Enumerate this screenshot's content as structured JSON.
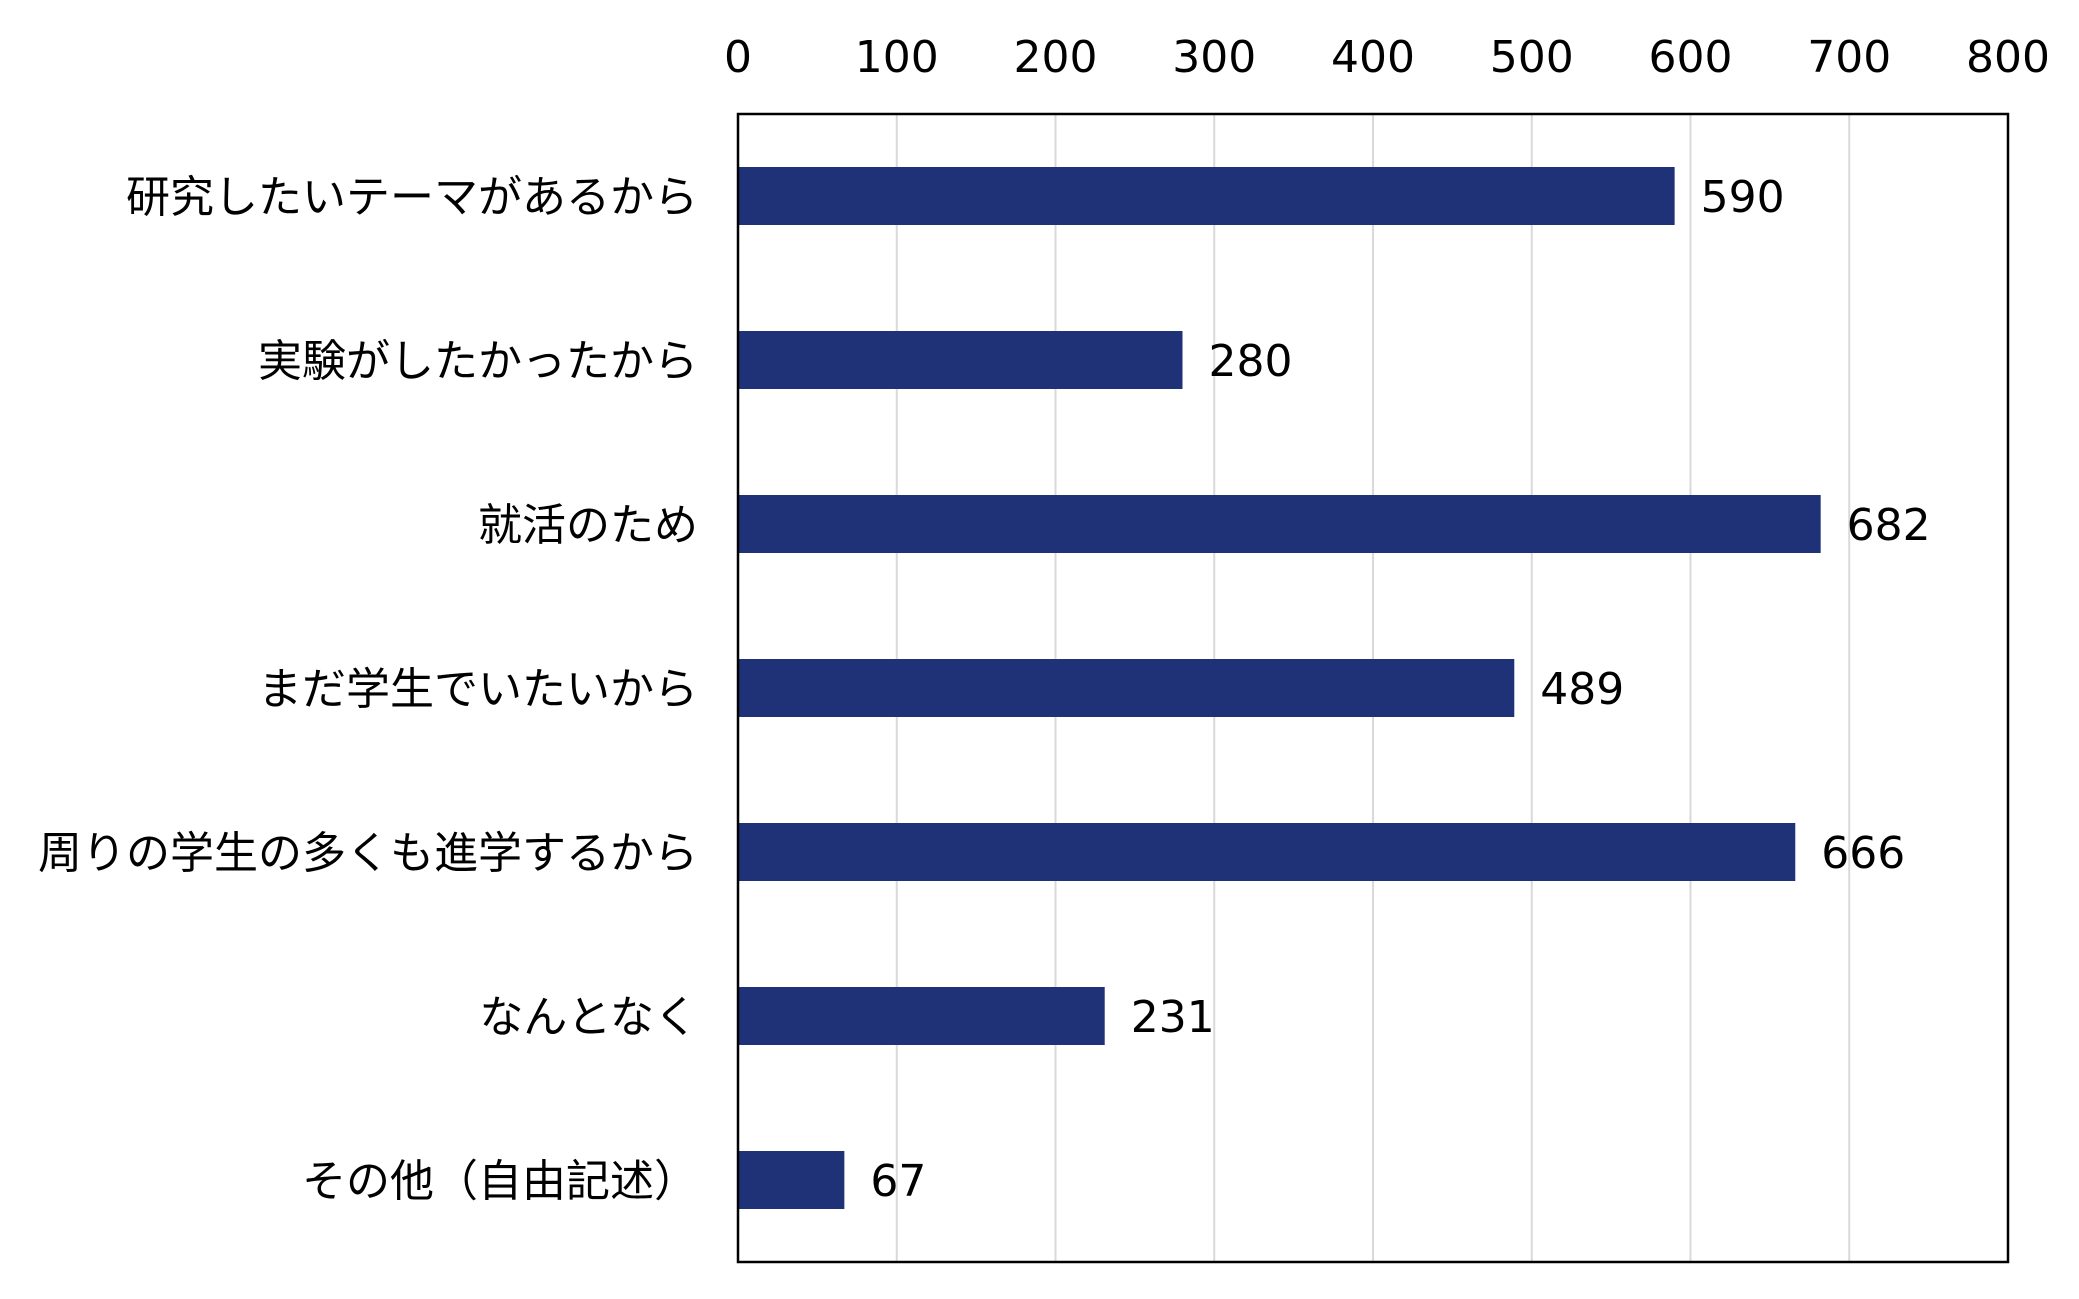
{
  "chart_data": {
    "type": "bar",
    "orientation": "horizontal",
    "title": "",
    "xlabel": "",
    "ylabel": "",
    "xlim": [
      0,
      800
    ],
    "x_ticks": [
      0,
      100,
      200,
      300,
      400,
      500,
      600,
      700,
      800
    ],
    "x_axis_position": "top",
    "grid": true,
    "legend": "none",
    "data_labels": true,
    "bar_color": "#1f3278",
    "categories": [
      "研究したいテーマがあるから",
      "実験がしたかったから",
      "就活のため",
      "まだ学生でいたいから",
      "周りの学生の多くも進学するから",
      "なんとなく",
      "その他（自由記述）"
    ],
    "values": [
      590,
      280,
      682,
      489,
      666,
      231,
      67
    ]
  }
}
